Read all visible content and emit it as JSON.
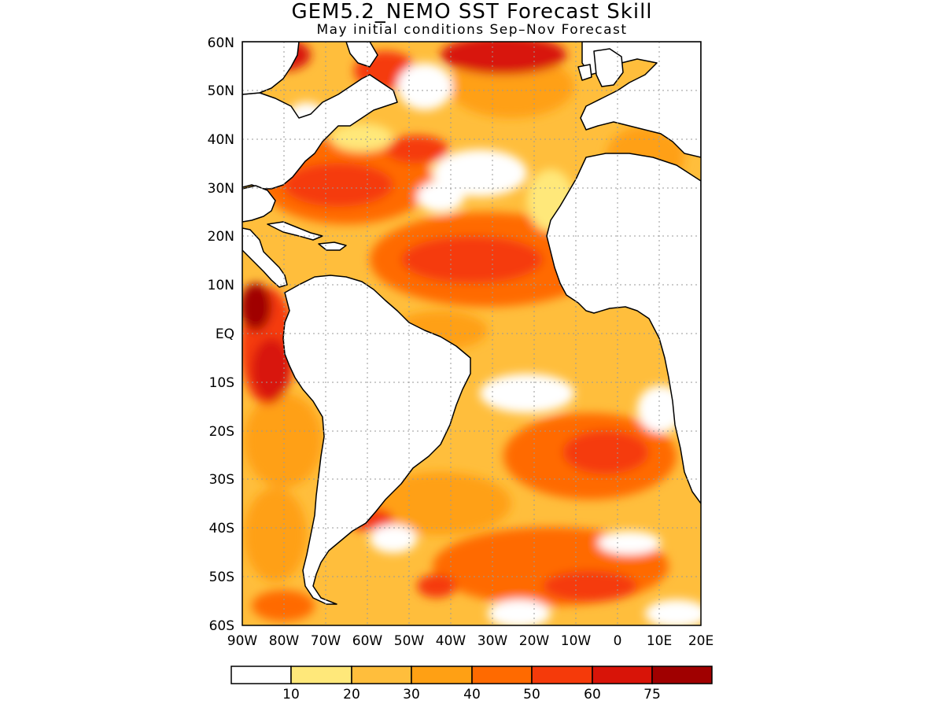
{
  "title": "GEM5.2_NEMO SST Forecast Skill",
  "subtitle": "May initial conditions  Sep–Nov Forecast",
  "map": {
    "lon_range": [
      -90,
      20
    ],
    "lat_range": [
      -60,
      60
    ],
    "lat_labels": [
      "60N",
      "50N",
      "40N",
      "30N",
      "20N",
      "10N",
      "EQ",
      "10S",
      "20S",
      "30S",
      "40S",
      "50S",
      "60S"
    ],
    "lon_labels": [
      "90W",
      "80W",
      "70W",
      "60W",
      "50W",
      "40W",
      "30W",
      "20W",
      "10W",
      "0",
      "10E",
      "20E"
    ]
  },
  "colorbar": {
    "colors": [
      "#ffffff",
      "#ffe87a",
      "#ffbe3c",
      "#ffa014",
      "#ff6a00",
      "#f53a0a",
      "#d81408",
      "#a00000"
    ],
    "labels": [
      "10",
      "20",
      "30",
      "40",
      "50",
      "60",
      "75"
    ]
  },
  "colors": {
    "land": "#ffffff",
    "coast": "#000000",
    "grid": "#9a9a9a"
  }
}
